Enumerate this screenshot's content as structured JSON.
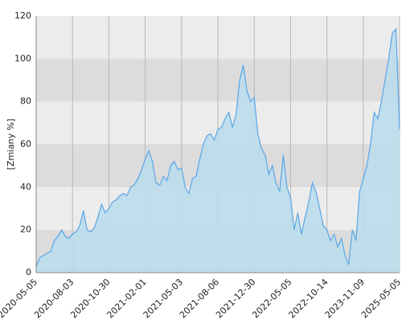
{
  "chart_data": {
    "type": "area",
    "y_label": "[Zmiany %]",
    "categories": [
      "2020-05-05",
      null,
      null,
      null,
      null,
      null,
      null,
      null,
      null,
      null,
      "2020-08-03",
      null,
      null,
      null,
      null,
      null,
      null,
      null,
      null,
      null,
      "2020-10-30",
      null,
      null,
      null,
      null,
      null,
      null,
      null,
      null,
      null,
      "2021-02-01",
      null,
      null,
      null,
      null,
      null,
      null,
      null,
      null,
      null,
      "2021-05-03",
      null,
      null,
      null,
      null,
      null,
      null,
      null,
      null,
      null,
      "2021-08-06",
      null,
      null,
      null,
      null,
      null,
      null,
      null,
      null,
      null,
      "2021-12-30",
      null,
      null,
      null,
      null,
      null,
      null,
      null,
      null,
      null,
      "2022-05-05",
      null,
      null,
      null,
      null,
      null,
      null,
      null,
      null,
      null,
      "2022-10-14",
      null,
      null,
      null,
      null,
      null,
      null,
      null,
      null,
      null,
      "2023-11-09",
      null,
      null,
      null,
      null,
      null,
      null,
      null,
      null,
      null,
      "2025-05-05"
    ],
    "series": [
      {
        "color": "#5aa6e6",
        "fill": "#b9dcec",
        "values": [
          3,
          7,
          8,
          9,
          10,
          15,
          17,
          20,
          17,
          16,
          18,
          19,
          22,
          29,
          20,
          19,
          21,
          26,
          32,
          28,
          30,
          33,
          34,
          36,
          37,
          36,
          40,
          41,
          44,
          48,
          53,
          57,
          52,
          42,
          41,
          45,
          43,
          50,
          52,
          48,
          49,
          40,
          37,
          44,
          45,
          53,
          60,
          64,
          65,
          62,
          67,
          68,
          72,
          75,
          68,
          74,
          90,
          97,
          85,
          80,
          82,
          65,
          58,
          55,
          46,
          50,
          42,
          38,
          55,
          40,
          35,
          20,
          28,
          18,
          26,
          33,
          42,
          38,
          30,
          22,
          20,
          15,
          18,
          12,
          16,
          8,
          4,
          20,
          15,
          38,
          44,
          50,
          60,
          75,
          72,
          80,
          90,
          100,
          112,
          114,
          67
        ]
      }
    ],
    "ylim": [
      0,
      120
    ],
    "yticks": [
      0,
      20,
      40,
      60,
      80,
      100,
      120
    ],
    "grid": true
  }
}
